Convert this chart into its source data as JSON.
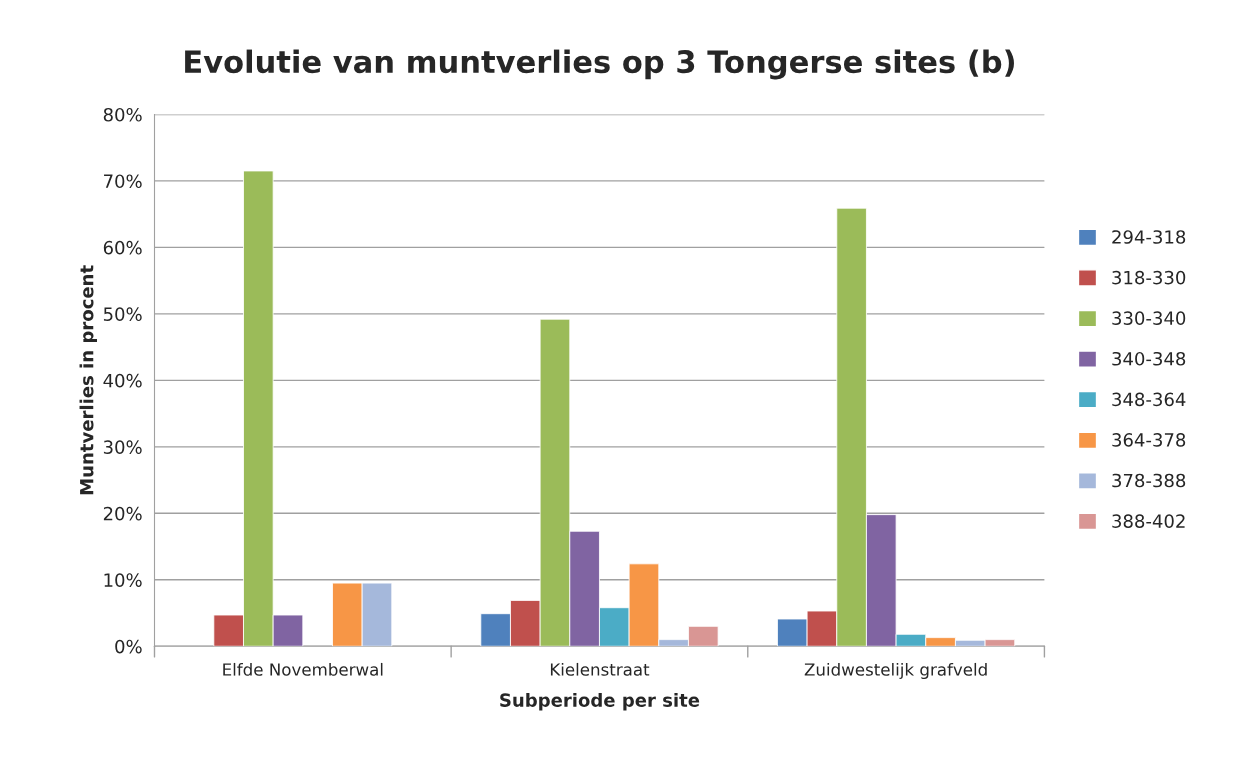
{
  "chart_data": {
    "type": "bar",
    "title": "Evolutie van muntverlies op 3 Tongerse sites (b)",
    "xlabel": "Subperiode per site",
    "ylabel": "Muntverlies in procent",
    "categories": [
      "Elfde Novemberwal",
      "Kielenstraat",
      "Zuidwestelijk grafveld"
    ],
    "series": [
      {
        "name": "294-318",
        "color": "#4f81bd",
        "values": [
          null,
          4.9,
          4.1
        ]
      },
      {
        "name": "318-330",
        "color": "#c0504d",
        "values": [
          4.7,
          6.9,
          5.3
        ]
      },
      {
        "name": "330-340",
        "color": "#9bbb59",
        "values": [
          71.5,
          49.2,
          65.9
        ]
      },
      {
        "name": "340-348",
        "color": "#8064a2",
        "values": [
          4.7,
          17.3,
          19.8
        ]
      },
      {
        "name": "348-364",
        "color": "#4bacc6",
        "values": [
          null,
          5.8,
          1.8
        ]
      },
      {
        "name": "364-378",
        "color": "#f79646",
        "values": [
          9.5,
          12.4,
          1.3
        ]
      },
      {
        "name": "378-388",
        "color": "#a5b8db",
        "values": [
          9.5,
          1.0,
          0.9
        ]
      },
      {
        "name": "388-402",
        "color": "#d99694",
        "values": [
          null,
          3.0,
          1.0
        ]
      }
    ],
    "ylim": [
      0,
      80
    ],
    "yticks": [
      {
        "value": 0,
        "label": "0%"
      },
      {
        "value": 10,
        "label": "10%"
      },
      {
        "value": 20,
        "label": "20%"
      },
      {
        "value": 30,
        "label": "30%"
      },
      {
        "value": 40,
        "label": "40%"
      },
      {
        "value": 50,
        "label": "50%"
      },
      {
        "value": 60,
        "label": "60%"
      },
      {
        "value": 70,
        "label": "70%"
      },
      {
        "value": 80,
        "label": "80%"
      }
    ],
    "grid": "y",
    "legend": "right"
  }
}
